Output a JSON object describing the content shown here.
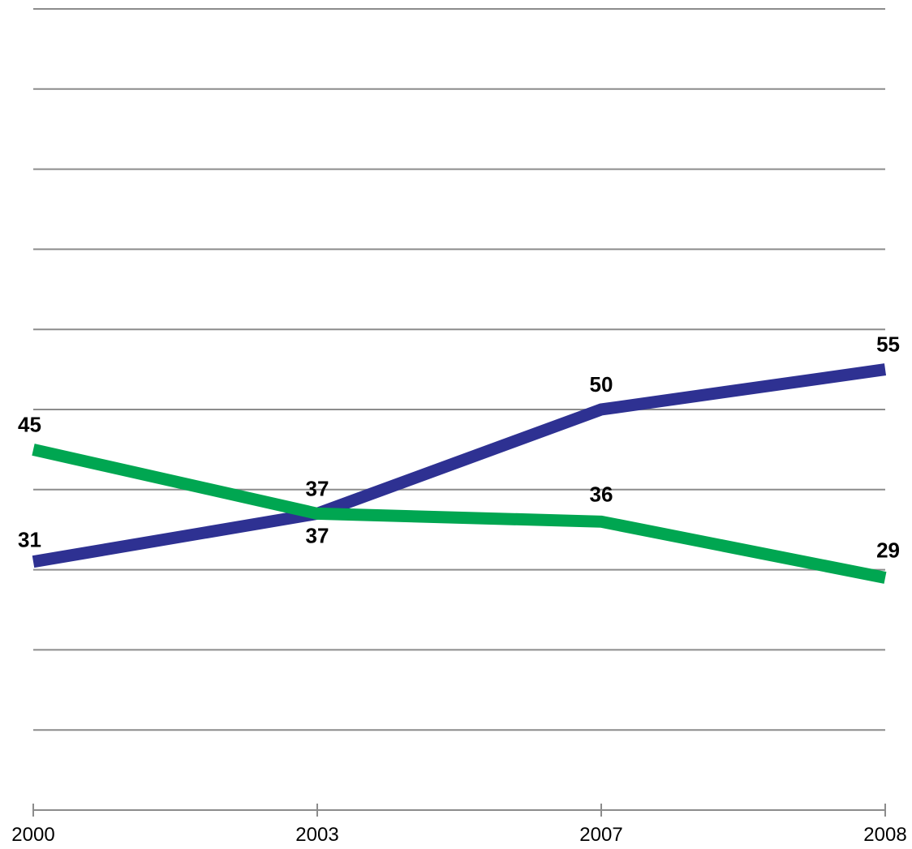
{
  "chart_data": {
    "type": "line",
    "categories": [
      "2000",
      "2003",
      "2007",
      "2008"
    ],
    "series": [
      {
        "values": [
          31,
          37,
          50,
          55
        ],
        "color": "#2e3192"
      },
      {
        "values": [
          45,
          37,
          36,
          29
        ],
        "color": "#00a651"
      }
    ],
    "ylim": [
      0,
      100
    ],
    "grid": true,
    "legend": "none",
    "xlabel": "",
    "ylabel": ""
  }
}
